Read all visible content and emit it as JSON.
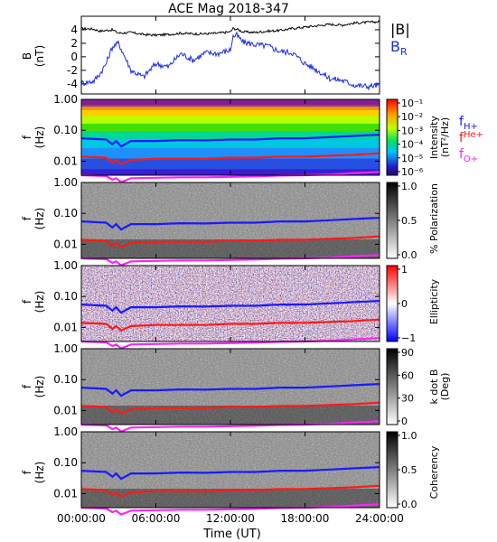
{
  "title": "ACE Mag 2018-347",
  "colors": {
    "B_total": "#000000",
    "B_R": "#1c2ee0",
    "f_H": "#1a1aff",
    "f_He": "#ff1a1a",
    "f_O": "#ff22ff"
  },
  "chart_data": [
    {
      "type": "line",
      "panel": "B",
      "ylabel_line1": "B",
      "ylabel_line2": "(nT)",
      "ylim": [
        -5.5,
        6
      ],
      "yticks": [
        "4",
        "2",
        "0",
        "-2",
        "-4"
      ],
      "yticks_values": [
        4,
        2,
        0,
        -2,
        -4
      ],
      "legend": [
        "|B|",
        "B",
        "R"
      ],
      "x": [
        0,
        1,
        1.5,
        2,
        2.5,
        3,
        4,
        5,
        6,
        7,
        8,
        9,
        10,
        11,
        12,
        12.2,
        12.5,
        13,
        14,
        15,
        16,
        17,
        18,
        19,
        20,
        21,
        22,
        23,
        24
      ],
      "series": [
        {
          "name": "|B|",
          "color": "#000000",
          "values": [
            4.2,
            4.1,
            3.8,
            3.9,
            4.0,
            3.5,
            3.6,
            3.3,
            3.2,
            3.3,
            3.5,
            3.4,
            3.4,
            3.5,
            3.7,
            4.2,
            4.1,
            3.7,
            3.6,
            3.8,
            3.9,
            4.2,
            4.4,
            4.6,
            4.8,
            4.7,
            5.0,
            5.1,
            5.2
          ]
        },
        {
          "name": "B_R",
          "color": "#1c2ee0",
          "values": [
            -3.9,
            -3.6,
            -2.5,
            -1.0,
            1.5,
            2.0,
            -2.0,
            -3.0,
            -1.0,
            -1.5,
            0.5,
            -0.5,
            0.6,
            0.5,
            1.0,
            3.0,
            3.2,
            2.2,
            1.8,
            1.6,
            0.8,
            0.6,
            -1.0,
            -2.0,
            -3.2,
            -3.5,
            -4.2,
            -4.4,
            -4.2
          ]
        }
      ]
    },
    {
      "type": "heatmap",
      "panel": "intensity",
      "ylabel_line1": "f",
      "ylabel_line2": "(Hz)",
      "yscale": "log",
      "ylim": [
        0.0035,
        1.0
      ],
      "yticks": [
        "1.00",
        "0.10",
        "0.01"
      ],
      "colorbar_label": "Intensity",
      "colorbar_units": "(nT²/Hz)",
      "colorbar_ticks": [
        "10⁻¹",
        "10⁻²",
        "10⁻³",
        "10⁻⁴",
        "10⁻⁵",
        "10⁻⁶"
      ],
      "legend": [
        "f",
        "H+",
        "f",
        "He+",
        "f",
        "O+"
      ]
    },
    {
      "type": "heatmap",
      "panel": "polarization",
      "ylabel_line1": "f",
      "ylabel_line2": "(Hz)",
      "yscale": "log",
      "ylim": [
        0.0035,
        1.0
      ],
      "yticks": [
        "1.00",
        "0.10",
        "0.01"
      ],
      "colorbar_label": "% Polarization",
      "colorbar_ticks": [
        "1.0",
        "0.5",
        "0.0"
      ]
    },
    {
      "type": "heatmap",
      "panel": "ellipticity",
      "ylabel_line1": "f",
      "ylabel_line2": "(Hz)",
      "yscale": "log",
      "ylim": [
        0.0035,
        1.0
      ],
      "yticks": [
        "1.00",
        "0.10",
        "0.01"
      ],
      "colorbar_label": "Ellipticity",
      "colorbar_ticks": [
        "1",
        "0",
        "−1"
      ]
    },
    {
      "type": "heatmap",
      "panel": "kdotb",
      "ylabel_line1": "f",
      "ylabel_line2": "(Hz)",
      "yscale": "log",
      "ylim": [
        0.0035,
        1.0
      ],
      "yticks": [
        "1.00",
        "0.10",
        "0.01"
      ],
      "colorbar_label": "k dot B",
      "colorbar_units": "(Deg)",
      "colorbar_ticks": [
        "90",
        "60",
        "30",
        "0"
      ]
    },
    {
      "type": "heatmap",
      "panel": "coherency",
      "ylabel_line1": "f",
      "ylabel_line2": "(Hz)",
      "yscale": "log",
      "ylim": [
        0.0035,
        1.0
      ],
      "yticks": [
        "1.00",
        "0.10",
        "0.01"
      ],
      "colorbar_label": "Coherency",
      "colorbar_ticks": [
        "1.0",
        "0.5",
        "0.0"
      ]
    }
  ],
  "gyrofrequency_lines_hz": {
    "x": [
      0,
      2,
      2.5,
      2.8,
      3.2,
      4,
      6,
      8,
      10,
      12,
      14,
      16,
      18,
      20,
      22,
      24
    ],
    "f_H": [
      0.055,
      0.05,
      0.035,
      0.045,
      0.03,
      0.045,
      0.045,
      0.048,
      0.047,
      0.05,
      0.05,
      0.055,
      0.055,
      0.06,
      0.066,
      0.072
    ],
    "f_He": [
      0.014,
      0.013,
      0.009,
      0.011,
      0.008,
      0.011,
      0.012,
      0.012,
      0.012,
      0.013,
      0.013,
      0.014,
      0.014,
      0.015,
      0.016,
      0.018
    ],
    "f_O": [
      0.0035,
      0.0033,
      0.0025,
      0.0028,
      0.0021,
      0.0028,
      0.0029,
      0.003,
      0.003,
      0.0031,
      0.0032,
      0.0034,
      0.0035,
      0.0037,
      0.0041,
      0.0045
    ]
  },
  "x_axis": {
    "label": "Time (UT)",
    "range_hours": [
      0,
      24
    ],
    "ticks": [
      "00:00:00",
      "06:00:00",
      "12:00:00",
      "18:00:00",
      "24:00:00"
    ],
    "tick_values": [
      0,
      6,
      12,
      18,
      24
    ]
  }
}
